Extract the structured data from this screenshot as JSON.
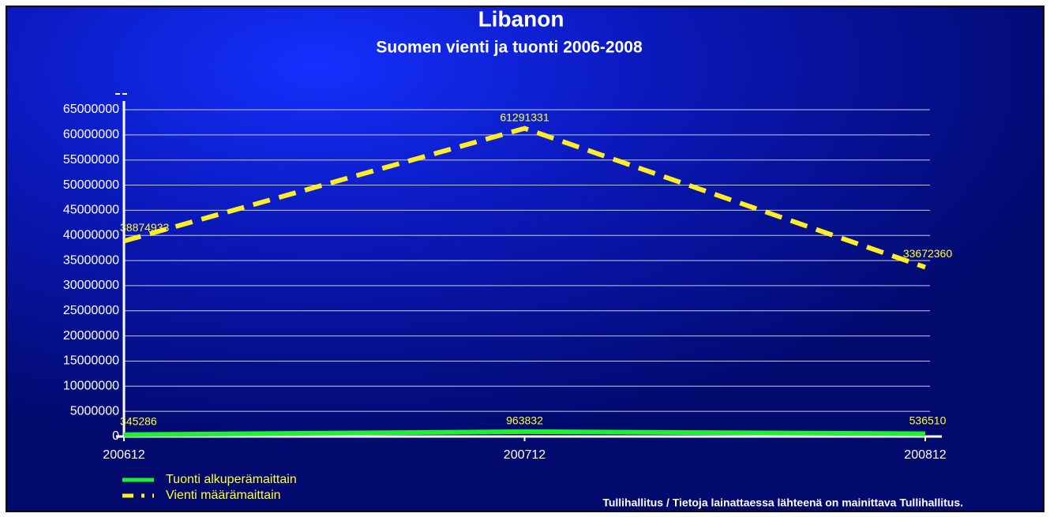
{
  "chart_data": {
    "type": "line",
    "title": "Libanon",
    "subtitle": "Suomen vienti ja tuonti 2006-2008",
    "categories": [
      "200612",
      "200712",
      "200812"
    ],
    "series": [
      {
        "name": "Tuonti alkuperämaittain",
        "color": "#22ee33",
        "dashed": false,
        "values": [
          345286,
          963832,
          536510
        ]
      },
      {
        "name": "Vienti määrämaittain",
        "color": "#ffee22",
        "dashed": true,
        "values": [
          38874933,
          61291331,
          33672360
        ]
      }
    ],
    "ylim": [
      0,
      65000000
    ],
    "yticks": [
      0,
      5000000,
      10000000,
      15000000,
      20000000,
      25000000,
      30000000,
      35000000,
      40000000,
      45000000,
      50000000,
      55000000,
      60000000,
      65000000
    ],
    "grid": true,
    "source": "Tullihallitus / Tietoja lainattaessa lähteenä on mainittava Tullihallitus."
  }
}
